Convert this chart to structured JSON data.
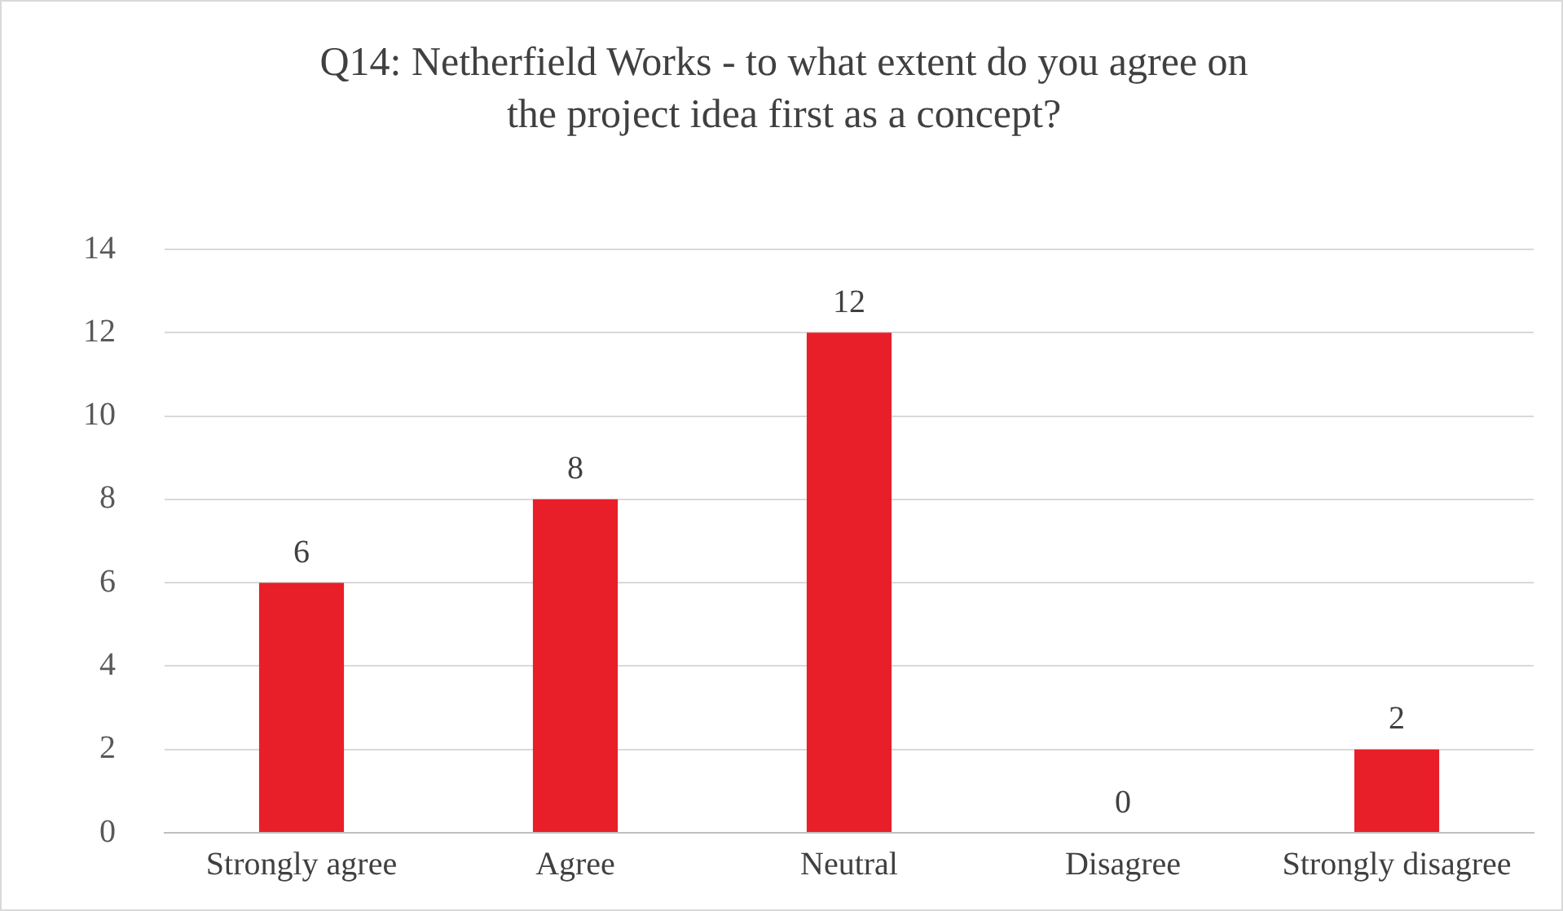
{
  "chart_data": {
    "type": "bar",
    "title": "Q14: Netherfield Works - to what extent do you agree on the project idea first as a concept?",
    "categories": [
      "Strongly agree",
      "Agree",
      "Neutral",
      "Disagree",
      "Strongly disagree"
    ],
    "values": [
      6,
      8,
      12,
      0,
      2
    ],
    "color": "#e81f29",
    "ylim": [
      0,
      14
    ],
    "yticks": [
      0,
      2,
      4,
      6,
      8,
      10,
      12,
      14
    ],
    "grid": "y",
    "data_labels": true,
    "legend": false
  }
}
